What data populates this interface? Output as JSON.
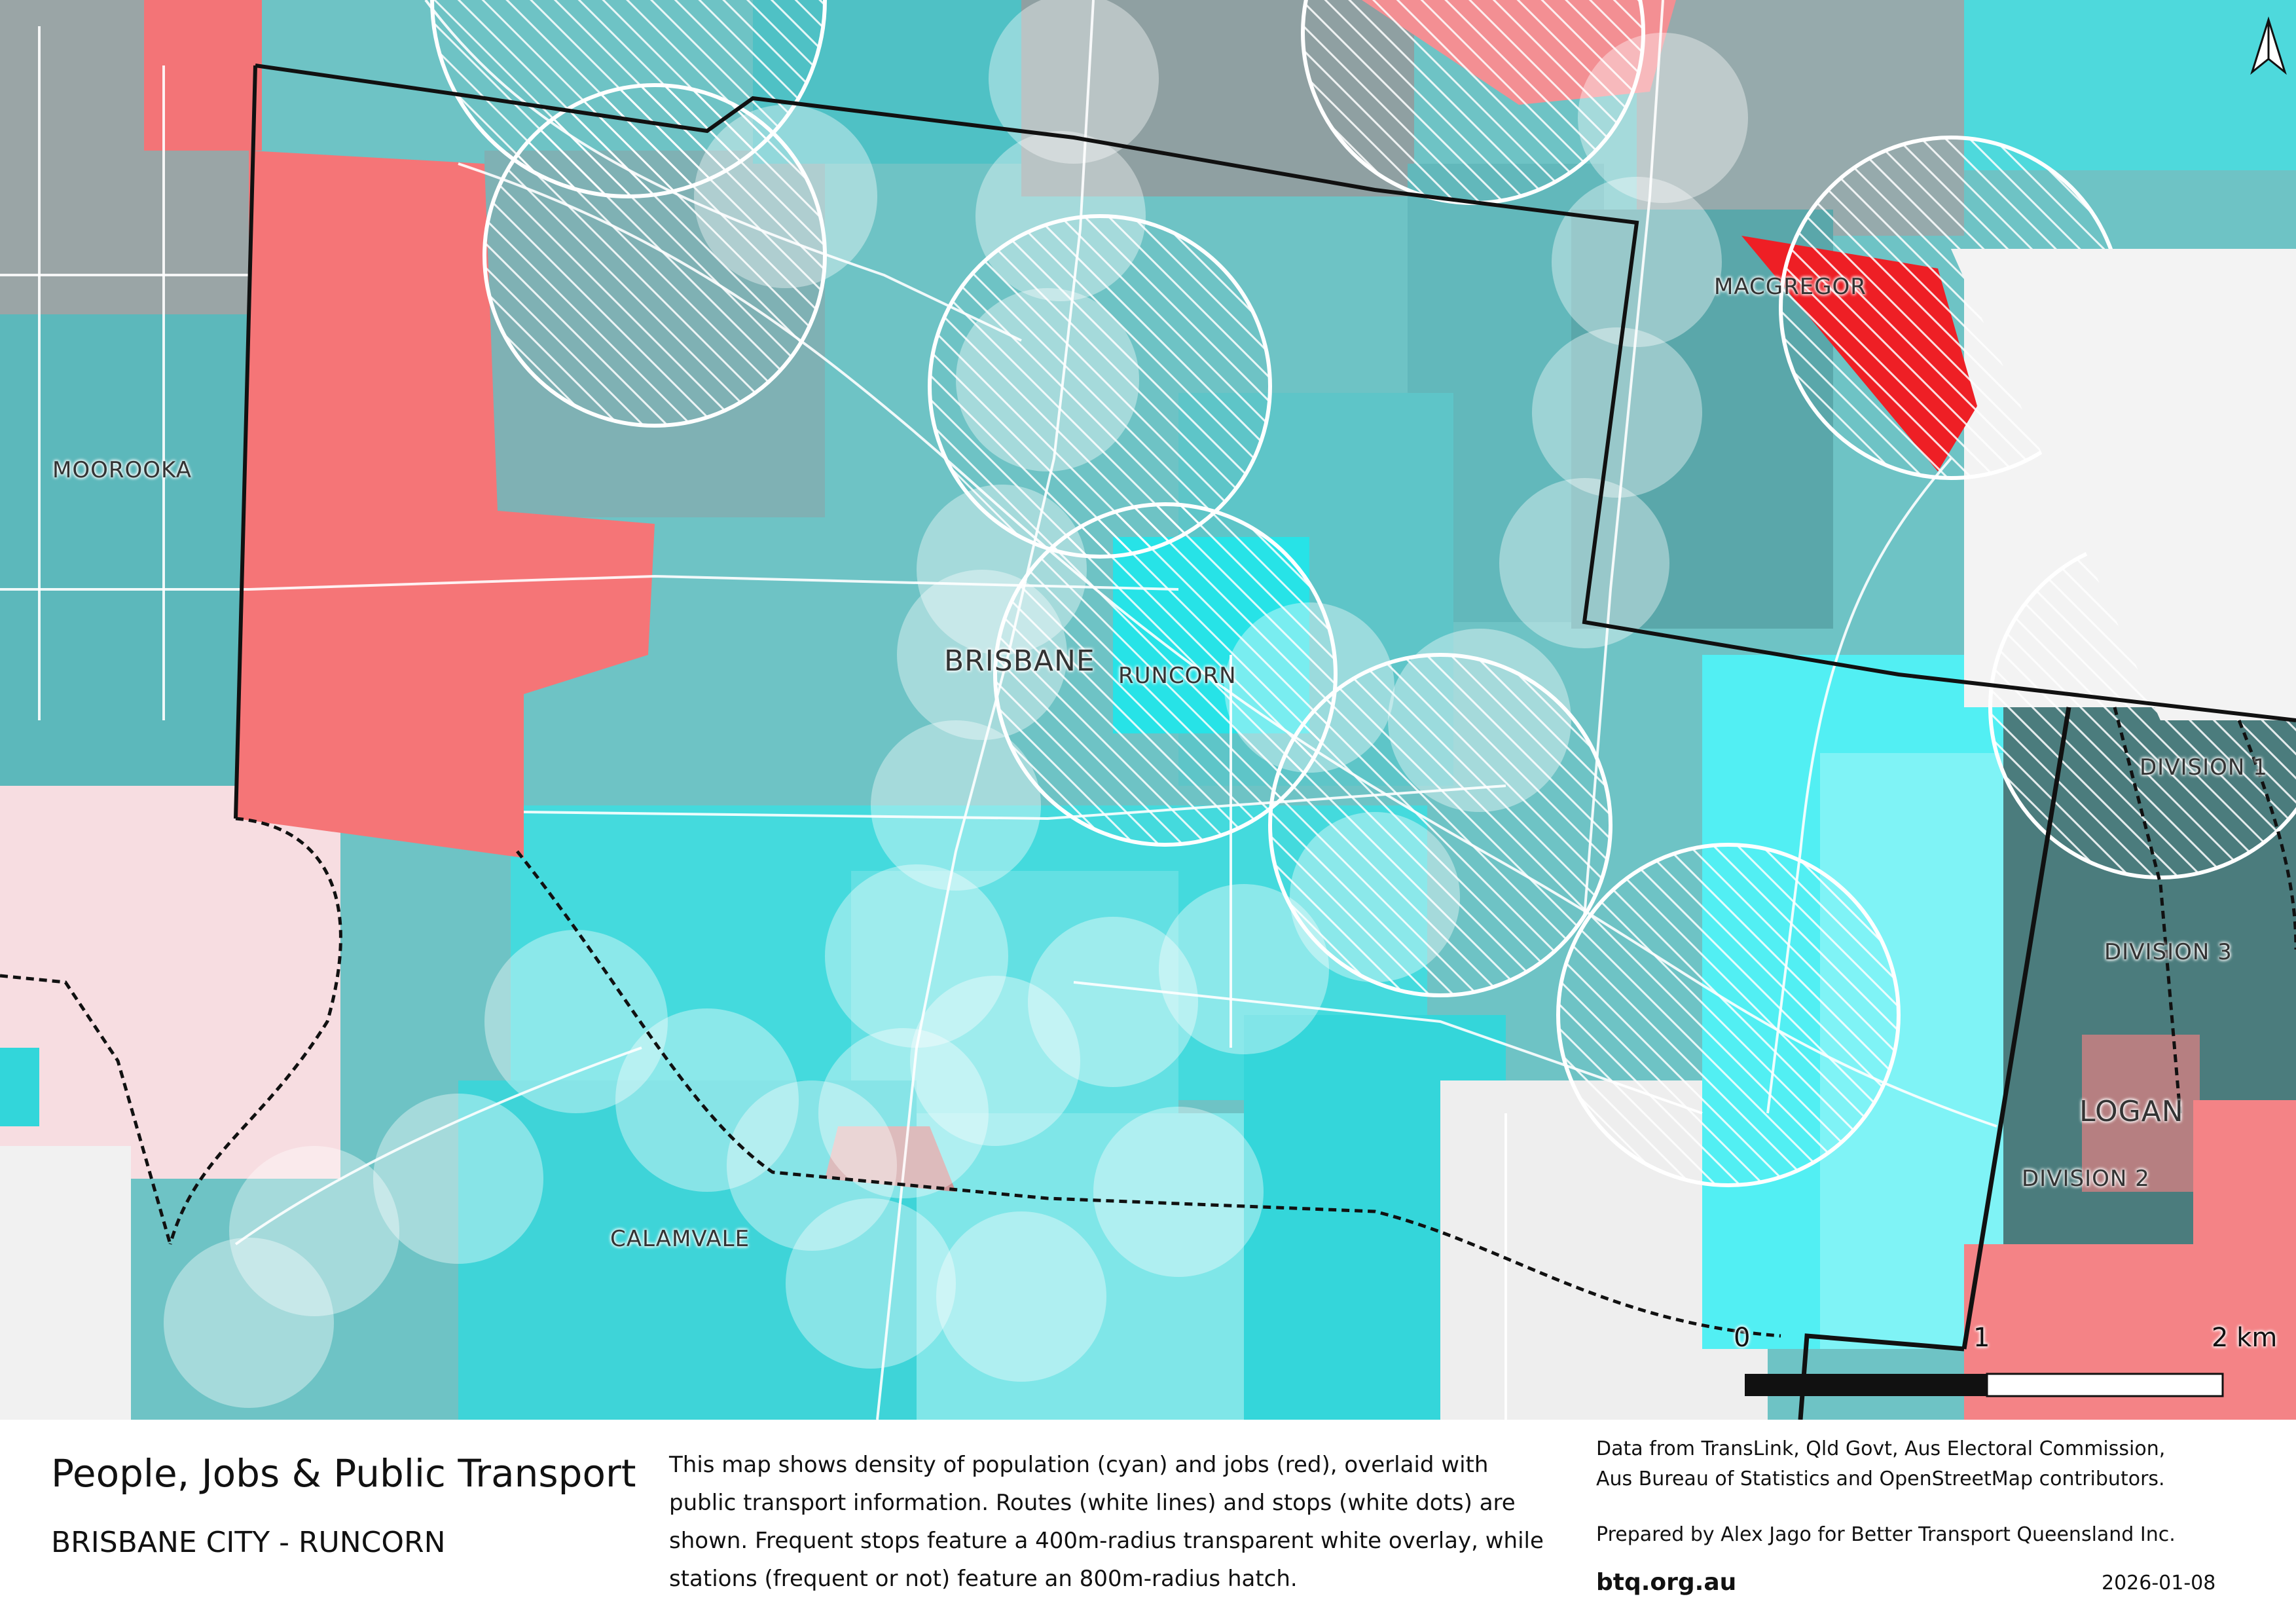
{
  "map": {
    "place_labels": [
      {
        "id": "moorooka",
        "text": "MOOROOKA"
      },
      {
        "id": "macgregor",
        "text": "MACGREGOR"
      },
      {
        "id": "runcorn",
        "text": "RUNCORN"
      },
      {
        "id": "calamvale",
        "text": "CALAMVALE"
      },
      {
        "id": "brisbane",
        "text": "BRISBANE"
      },
      {
        "id": "logan",
        "text": "LOGAN"
      },
      {
        "id": "division-1",
        "text": "DIVISION 1"
      },
      {
        "id": "division-3",
        "text": "DIVISION 3"
      },
      {
        "id": "division-2",
        "text": "DIVISION 2"
      }
    ],
    "scale_bar": {
      "label_0": "0",
      "label_1": "1",
      "label_2": "2 km"
    },
    "north_arrow_icon": "north-arrow-icon",
    "colors": {
      "population": "#3fe0e4",
      "jobs": "#f06a6a",
      "frequent_overlay": "#ffffff",
      "boundary": "#111111"
    }
  },
  "footer": {
    "title": "People, Jobs & Public Transport",
    "subtitle": "BRISBANE CITY - RUNCORN",
    "description": "This map shows density of population (cyan) and jobs (red), overlaid with public transport information. Routes (white lines) and stops (white dots) are shown. Frequent stops feature a 400m-radius transparent white overlay, while stations (frequent or not) feature an 800m-radius hatch.",
    "credits_line1": "Data from TransLink,  Qld Govt,  Aus Electoral Commission,",
    "credits_line2": "Aus Bureau of Statistics and OpenStreetMap contributors.",
    "prepared_by": "Prepared by Alex Jago for Better Transport Queensland Inc.",
    "website": "btq.org.au",
    "date": "2026-01-08"
  }
}
